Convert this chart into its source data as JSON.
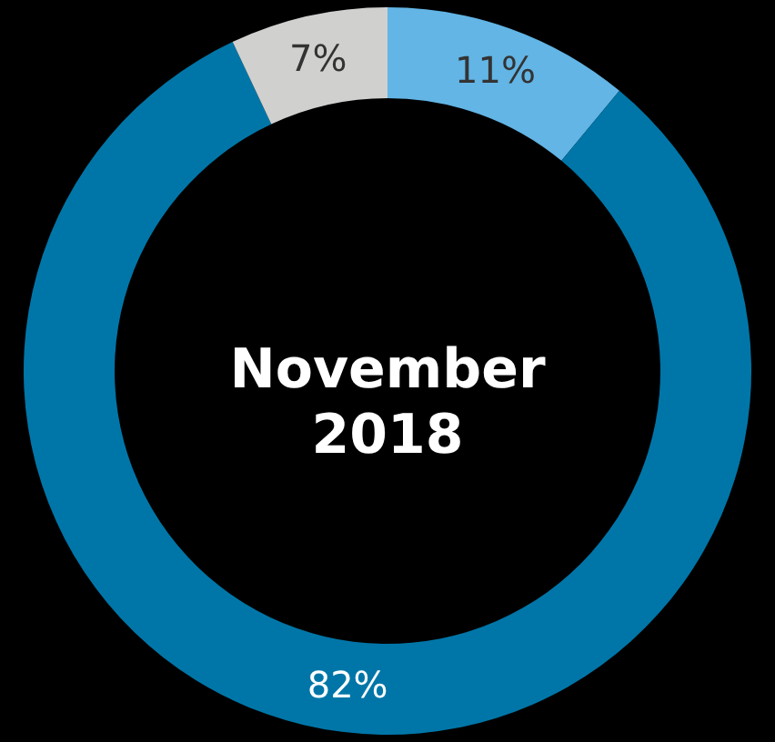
{
  "chart_data": {
    "type": "donut",
    "title": "November 2018",
    "categories": [
      null,
      null,
      null
    ],
    "values": [
      11,
      82,
      7
    ],
    "colors": [
      "#62b5e5",
      "#0076a8",
      "#d0d0ce"
    ],
    "value_labels": [
      "11%",
      "82%",
      "7%"
    ],
    "legend": false
  }
}
